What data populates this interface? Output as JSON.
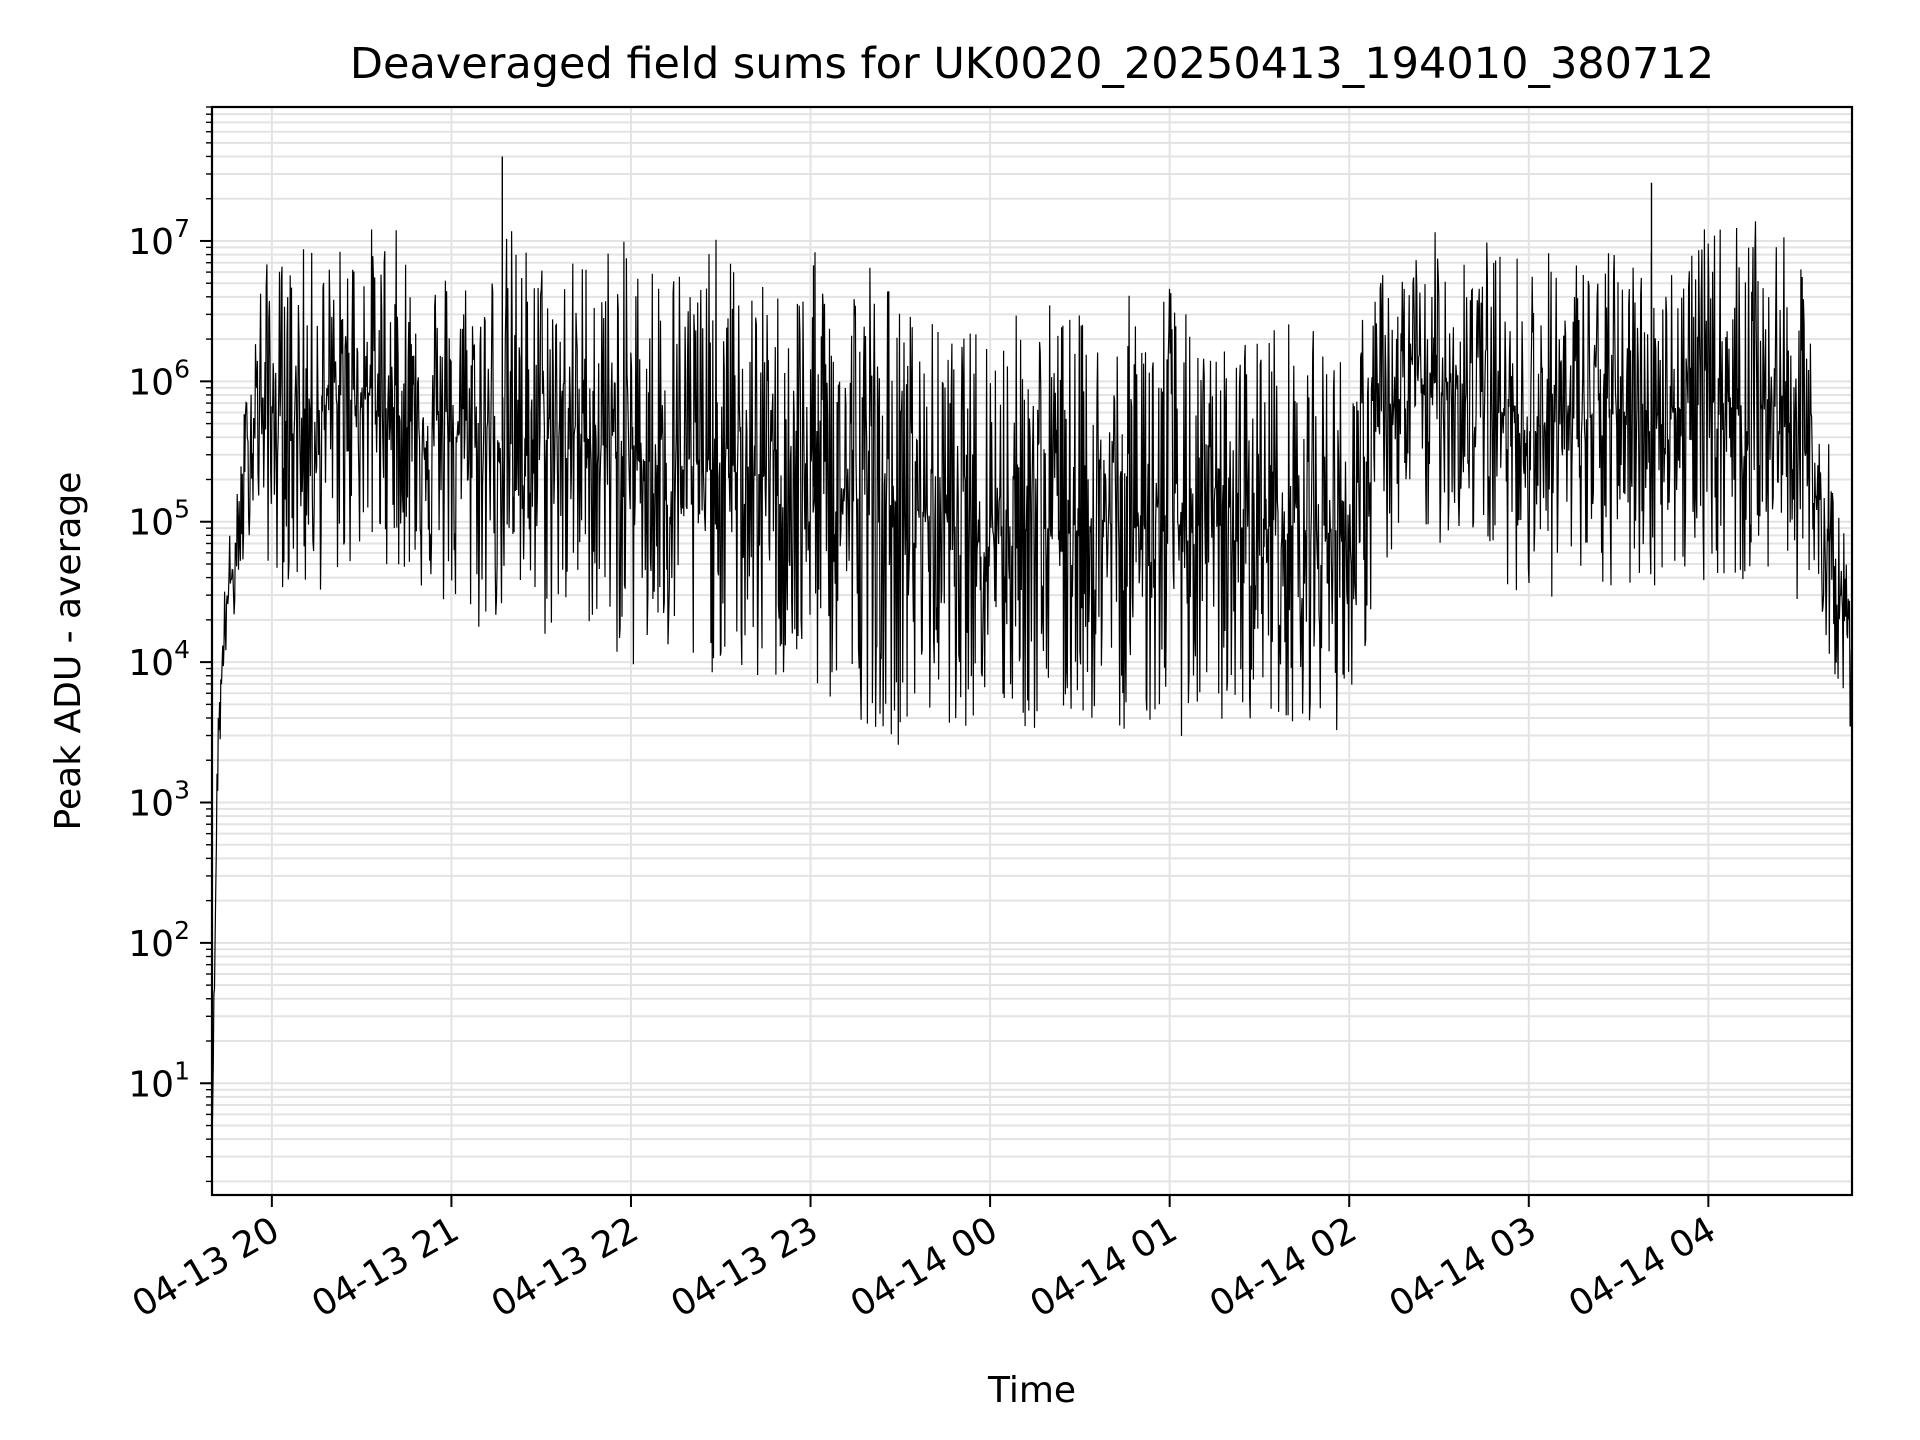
{
  "chart_data": {
    "type": "line",
    "title": "Deaveraged field sums for UK0020_20250413_194010_380712",
    "xlabel": "Time",
    "ylabel": "Peak ADU - average",
    "yscale": "log",
    "ylim": [
      1.6,
      90000000
    ],
    "xlim": [
      "2025-04-13 19:40",
      "2025-04-14 04:48"
    ],
    "grid": true,
    "x_ticks": [
      {
        "value": "2025-04-13 20:00",
        "label": "04-13 20"
      },
      {
        "value": "2025-04-13 21:00",
        "label": "04-13 21"
      },
      {
        "value": "2025-04-13 22:00",
        "label": "04-13 22"
      },
      {
        "value": "2025-04-13 23:00",
        "label": "04-13 23"
      },
      {
        "value": "2025-04-14 00:00",
        "label": "04-14 00"
      },
      {
        "value": "2025-04-14 01:00",
        "label": "04-14 01"
      },
      {
        "value": "2025-04-14 02:00",
        "label": "04-14 02"
      },
      {
        "value": "2025-04-14 03:00",
        "label": "04-14 03"
      },
      {
        "value": "2025-04-14 04:00",
        "label": "04-14 04"
      }
    ],
    "y_ticks": [
      {
        "value": 10,
        "base": "10",
        "exp": "1"
      },
      {
        "value": 100,
        "base": "10",
        "exp": "2"
      },
      {
        "value": 1000,
        "base": "10",
        "exp": "3"
      },
      {
        "value": 10000,
        "base": "10",
        "exp": "4"
      },
      {
        "value": 100000,
        "base": "10",
        "exp": "5"
      },
      {
        "value": 1000000,
        "base": "10",
        "exp": "6"
      },
      {
        "value": 10000000,
        "base": "10",
        "exp": "7"
      }
    ],
    "series": [
      {
        "color": "#000000",
        "x": [
          "2025-04-13 19:40",
          "2025-04-13 19:42",
          "2025-04-13 19:45",
          "2025-04-13 19:48",
          "2025-04-13 19:51",
          "2025-04-13 19:54",
          "2025-04-13 19:57",
          "2025-04-13 20:00",
          "2025-04-13 20:10",
          "2025-04-13 20:20",
          "2025-04-13 20:30",
          "2025-04-13 20:40",
          "2025-04-13 20:50",
          "2025-04-13 21:00",
          "2025-04-13 21:10",
          "2025-04-13 21:20",
          "2025-04-13 21:30",
          "2025-04-13 21:40",
          "2025-04-13 21:50",
          "2025-04-13 22:00",
          "2025-04-13 22:10",
          "2025-04-13 22:20",
          "2025-04-13 22:30",
          "2025-04-13 22:40",
          "2025-04-13 22:50",
          "2025-04-13 23:00",
          "2025-04-13 23:10",
          "2025-04-13 23:20",
          "2025-04-13 23:30",
          "2025-04-13 23:40",
          "2025-04-13 23:50",
          "2025-04-14 00:00",
          "2025-04-14 00:10",
          "2025-04-14 00:20",
          "2025-04-14 00:30",
          "2025-04-14 00:40",
          "2025-04-14 00:50",
          "2025-04-14 01:00",
          "2025-04-14 01:10",
          "2025-04-14 01:20",
          "2025-04-14 01:30",
          "2025-04-14 01:40",
          "2025-04-14 01:50",
          "2025-04-14 02:00",
          "2025-04-14 02:10",
          "2025-04-14 02:20",
          "2025-04-14 02:30",
          "2025-04-14 02:40",
          "2025-04-14 02:50",
          "2025-04-14 03:00",
          "2025-04-14 03:10",
          "2025-04-14 03:20",
          "2025-04-14 03:30",
          "2025-04-14 03:40",
          "2025-04-14 03:50",
          "2025-04-14 04:00",
          "2025-04-14 04:10",
          "2025-04-14 04:20",
          "2025-04-14 04:30",
          "2025-04-14 04:38",
          "2025-04-14 04:44",
          "2025-04-14 04:48"
        ],
        "y": [
          4,
          3000,
          30000,
          50000,
          200000,
          600000,
          700000,
          600000,
          500000,
          700000,
          900000,
          600000,
          500000,
          400000,
          450000,
          350000,
          400000,
          450000,
          350000,
          300000,
          250000,
          250000,
          230000,
          220000,
          200000,
          180000,
          160000,
          140000,
          120000,
          120000,
          110000,
          100000,
          100000,
          95000,
          95000,
          95000,
          95000,
          95000,
          95000,
          90000,
          90000,
          90000,
          85000,
          90000,
          500000,
          800000,
          1000000,
          1000000,
          600000,
          500000,
          500000,
          550000,
          600000,
          600000,
          650000,
          700000,
          700000,
          700000,
          500000,
          100000,
          30000,
          10000
        ],
        "spike_range": [
          [
            0.2,
            0.2
          ],
          [
            0.7,
            0.8
          ],
          [
            0.9,
            0.85
          ],
          [
            1.0,
            1.0
          ],
          [
            1.4,
            1.4
          ],
          [
            2.0,
            1.6
          ],
          [
            2.4,
            2.4
          ],
          [
            2.6,
            2.9
          ],
          [
            3.0,
            3.0
          ],
          [
            2.6,
            3.2
          ],
          [
            2.8,
            2.9
          ],
          [
            3.2,
            2.6
          ],
          [
            3.0,
            2.9
          ],
          [
            3.0,
            3.2
          ],
          [
            2.8,
            3.6
          ],
          [
            3.8,
            2.8
          ],
          [
            3.2,
            3.6
          ],
          [
            3.0,
            3.3
          ],
          [
            3.6,
            3.2
          ],
          [
            3.6,
            3.8
          ],
          [
            3.8,
            3.4
          ],
          [
            3.6,
            4.0
          ],
          [
            4.0,
            3.3
          ],
          [
            3.2,
            3.8
          ],
          [
            3.4,
            3.6
          ],
          [
            4.0,
            3.6
          ],
          [
            4.0,
            3.8
          ],
          [
            4.4,
            3.8
          ],
          [
            3.6,
            4.0
          ],
          [
            3.3,
            3.6
          ],
          [
            3.0,
            3.6
          ],
          [
            3.8,
            3.4
          ],
          [
            3.6,
            3.6
          ],
          [
            4.0,
            3.8
          ],
          [
            3.6,
            3.3
          ],
          [
            3.4,
            3.6
          ],
          [
            4.2,
            3.4
          ],
          [
            4.4,
            3.6
          ],
          [
            3.0,
            3.6
          ],
          [
            3.2,
            3.4
          ],
          [
            3.6,
            3.2
          ],
          [
            3.6,
            3.3
          ],
          [
            3.4,
            3.2
          ],
          [
            3.0,
            3.6
          ],
          [
            2.6,
            2.6
          ],
          [
            2.4,
            2.6
          ],
          [
            2.6,
            2.8
          ],
          [
            2.8,
            2.6
          ],
          [
            2.8,
            2.8
          ],
          [
            3.0,
            3.0
          ],
          [
            3.0,
            3.0
          ],
          [
            2.8,
            3.2
          ],
          [
            2.8,
            3.2
          ],
          [
            3.0,
            3.0
          ],
          [
            2.8,
            3.0
          ],
          [
            3.0,
            3.0
          ],
          [
            3.2,
            3.2
          ],
          [
            3.0,
            3.0
          ],
          [
            3.0,
            3.0
          ],
          [
            2.0,
            2.0
          ],
          [
            1.6,
            1.6
          ],
          [
            1.4,
            1.4
          ]
        ]
      }
    ],
    "peaks": [
      {
        "x": "2025-04-13 21:17",
        "y": 40000000
      },
      {
        "x": "2025-04-13 23:01",
        "y": 6700000
      },
      {
        "x": "2025-04-14 03:41",
        "y": 26000000
      }
    ]
  }
}
